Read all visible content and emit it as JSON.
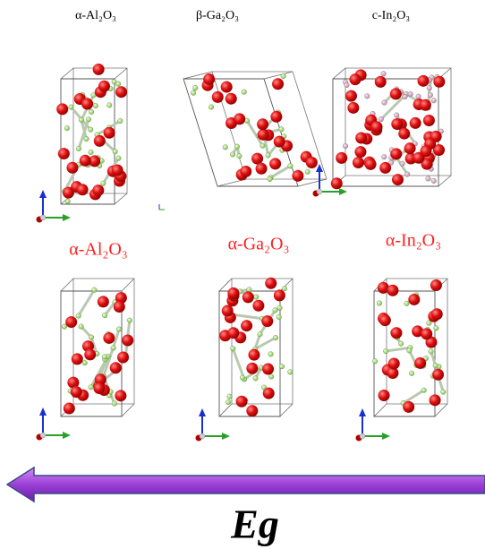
{
  "top_row": {
    "labels": [
      "α-Al₂O₃",
      "β-Ga₂O₃",
      "c-In₂O₃"
    ]
  },
  "bottom_row": {
    "labels": [
      "α-Al₂O₃",
      "α-Ga₂O₃",
      "α-In₂O₃"
    ]
  },
  "arrow": {
    "label": "Eg"
  }
}
